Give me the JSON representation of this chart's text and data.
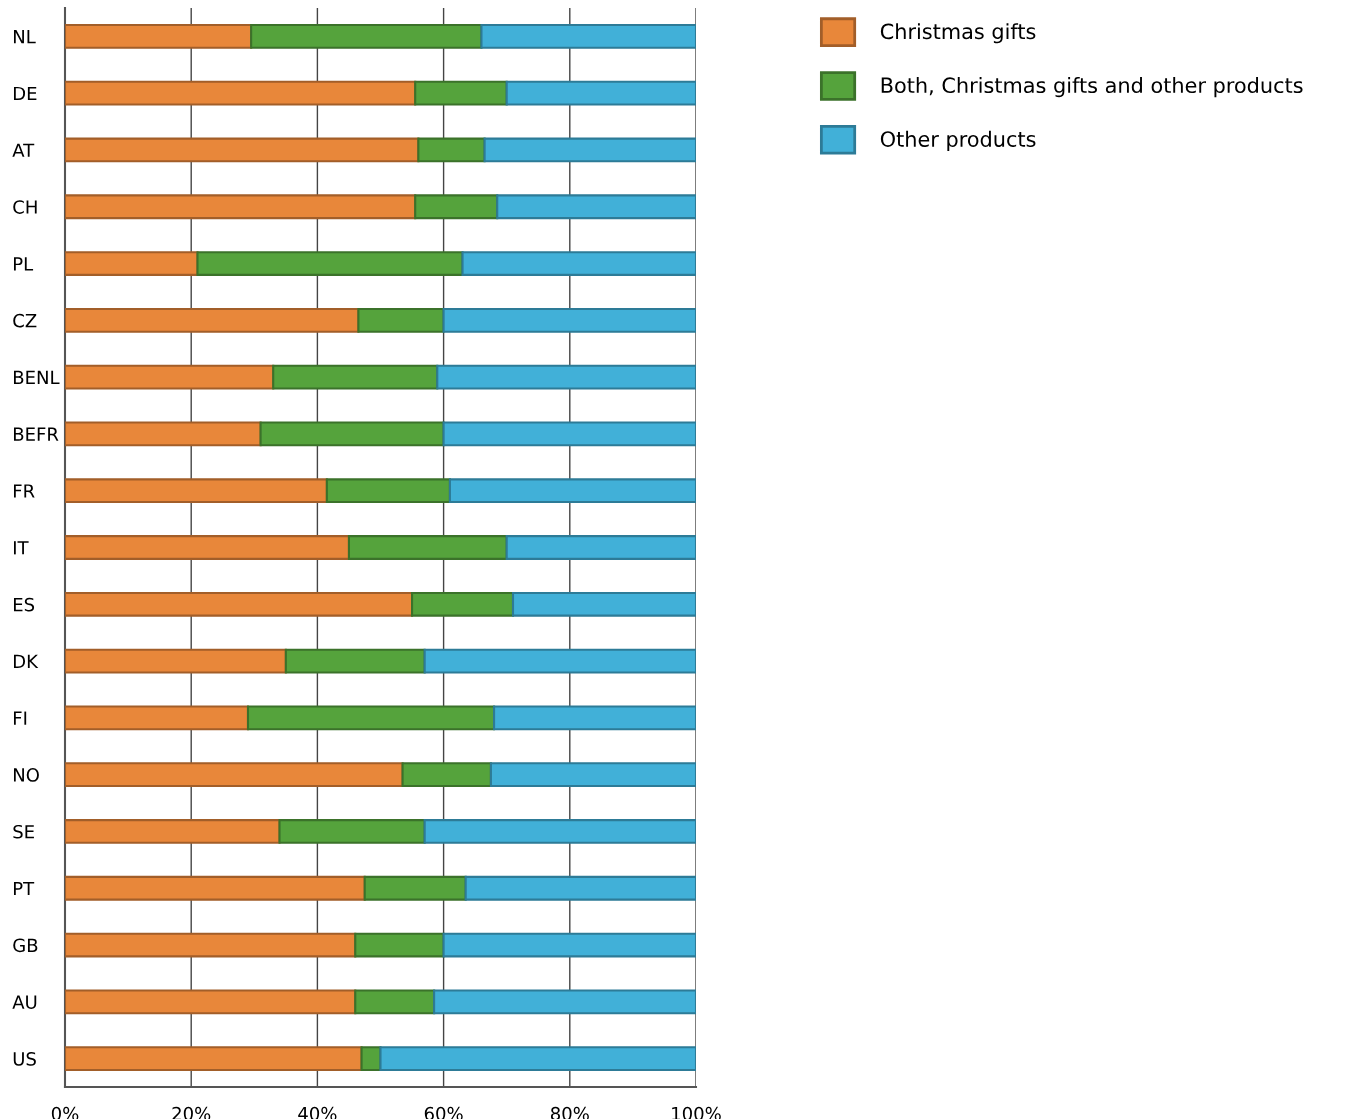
{
  "chart_data": {
    "type": "bar",
    "orientation": "horizontal",
    "stacked": true,
    "categories": [
      "NL",
      "DE",
      "AT",
      "CH",
      "PL",
      "CZ",
      "BENL",
      "BEFR",
      "FR",
      "IT",
      "ES",
      "DK",
      "FI",
      "NO",
      "SE",
      "PT",
      "GB",
      "AU",
      "US"
    ],
    "series": [
      {
        "name": "Christmas gifts",
        "color": "#e8873a",
        "values": [
          29.5,
          55.5,
          56,
          55.5,
          21,
          46.5,
          33,
          31,
          41.5,
          45,
          55,
          35,
          29,
          53.5,
          34,
          47.5,
          46,
          46,
          47
        ]
      },
      {
        "name": "Both, Christmas gifts and other products",
        "color": "#55a33c",
        "values": [
          36.5,
          14.5,
          10.5,
          13,
          42,
          13.5,
          26,
          29,
          19.5,
          25,
          16,
          22,
          39,
          14,
          23,
          16,
          14,
          12.5,
          3
        ]
      },
      {
        "name": "Other products",
        "color": "#41b0d8",
        "values": [
          34,
          30,
          33.5,
          31.5,
          37,
          40,
          41,
          40,
          39,
          30,
          29,
          43,
          32,
          32.5,
          43,
          36.5,
          40,
          41.5,
          50
        ]
      }
    ],
    "xlim": [
      0,
      100
    ],
    "xticks": [
      {
        "value": 0,
        "label": "0%"
      },
      {
        "value": 20,
        "label": "20%"
      },
      {
        "value": 40,
        "label": "40%"
      },
      {
        "value": 60,
        "label": "60%"
      },
      {
        "value": 80,
        "label": "80%"
      },
      {
        "value": 100,
        "label": "100%"
      }
    ],
    "grid": "x",
    "legend": "top right"
  }
}
